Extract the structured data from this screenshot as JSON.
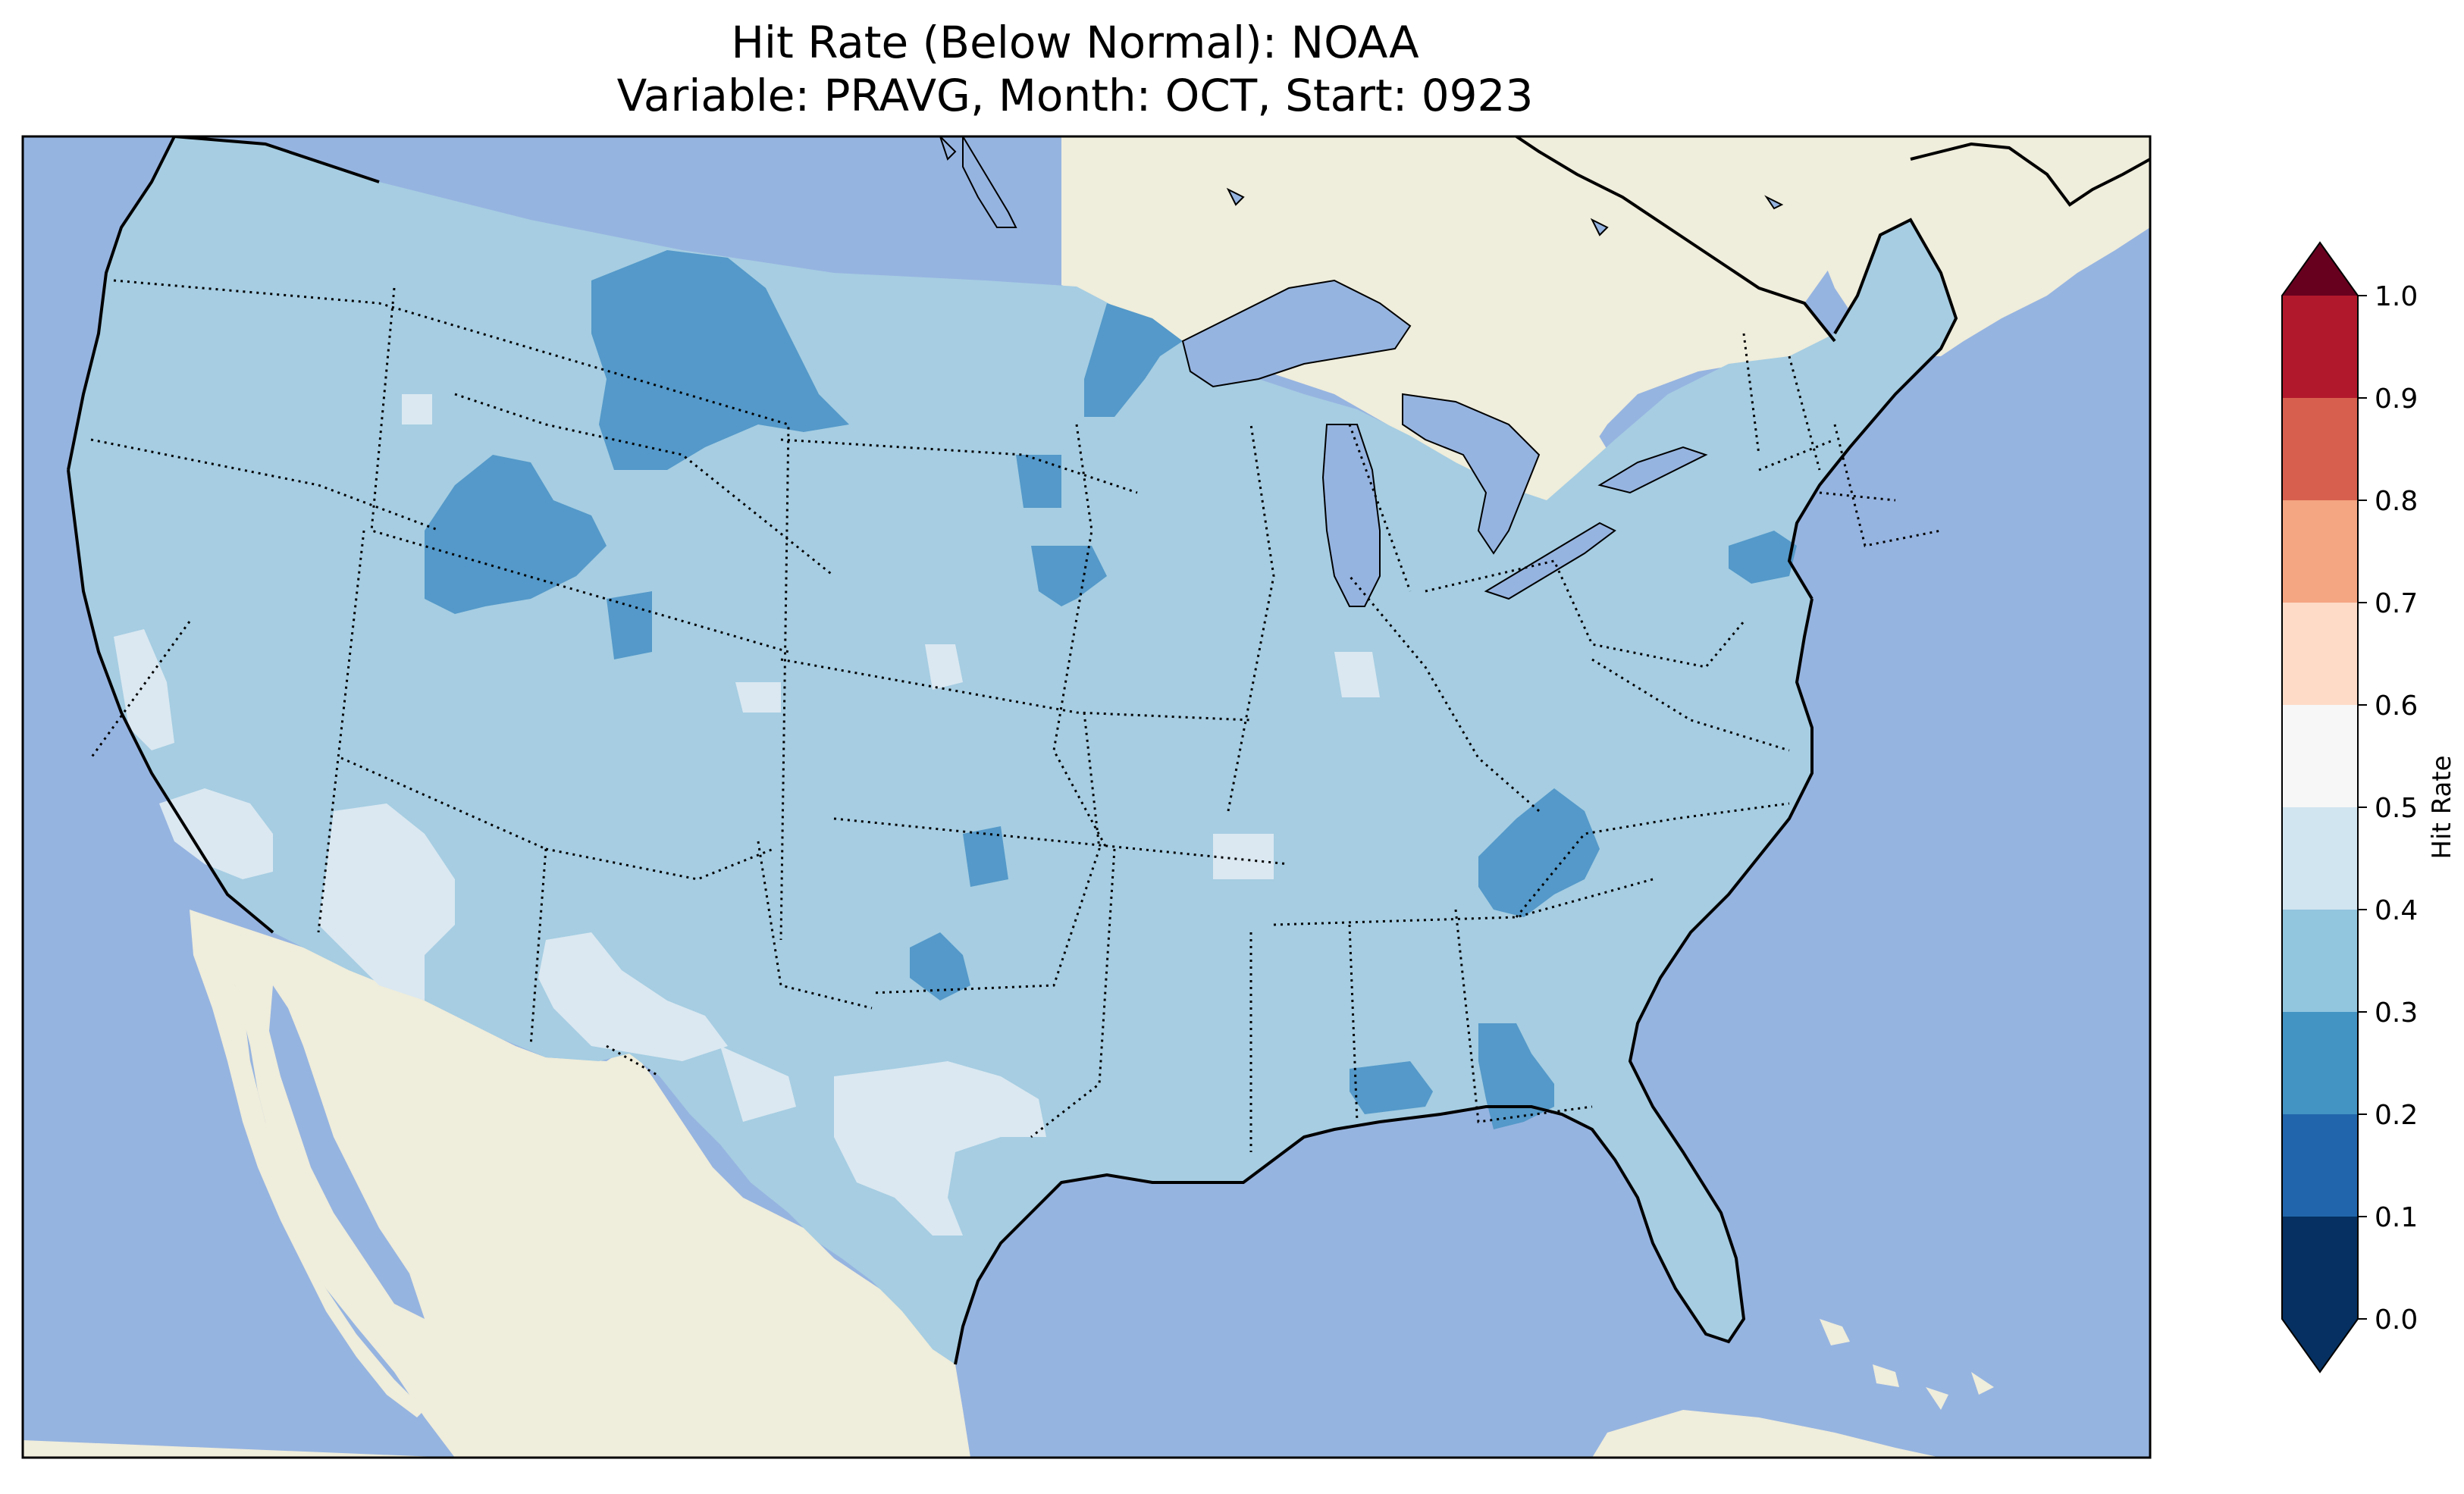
{
  "title": {
    "line1": "Hit Rate (Below Normal): NOAA",
    "line2": "Variable: PRAVG, Month: OCT, Start: 0923"
  },
  "colors": {
    "ocean": "#96b4e0",
    "land": "#efeddb",
    "lake": "#96b4e0",
    "border": "#000000"
  },
  "colorbar": {
    "label": "Hit Rate",
    "ticks": [
      "0.0",
      "0.1",
      "0.2",
      "0.3",
      "0.4",
      "0.5",
      "0.6",
      "0.7",
      "0.8",
      "0.9",
      "1.0"
    ],
    "bins": [
      {
        "from": 0.0,
        "to": 0.1,
        "color": "#053061"
      },
      {
        "from": 0.1,
        "to": 0.2,
        "color": "#2166ac"
      },
      {
        "from": 0.2,
        "to": 0.3,
        "color": "#4393c3"
      },
      {
        "from": 0.3,
        "to": 0.4,
        "color": "#92c5de"
      },
      {
        "from": 0.4,
        "to": 0.5,
        "color": "#d1e5f0"
      },
      {
        "from": 0.5,
        "to": 0.6,
        "color": "#f7f7f7"
      },
      {
        "from": 0.6,
        "to": 0.7,
        "color": "#fddbc7"
      },
      {
        "from": 0.7,
        "to": 0.8,
        "color": "#f4a582"
      },
      {
        "from": 0.8,
        "to": 0.9,
        "color": "#d6604d"
      },
      {
        "from": 0.9,
        "to": 1.0,
        "color": "#b2182b"
      }
    ],
    "extend_low_color": "#053061",
    "extend_high_color": "#67001f"
  },
  "map_field": {
    "base_class": "0.3-0.4",
    "base_color": "#a6cde2",
    "regions": [
      {
        "name": "montana-low",
        "class": "0.2-0.3",
        "color": "#5499c9"
      },
      {
        "name": "idaho-low",
        "class": "0.2-0.3",
        "color": "#5499c9"
      },
      {
        "name": "minnesota-low",
        "class": "0.2-0.3",
        "color": "#5499c9"
      },
      {
        "name": "iowa-low",
        "class": "0.2-0.3",
        "color": "#5499c9"
      },
      {
        "name": "tennessee-low",
        "class": "0.2-0.3",
        "color": "#5499c9"
      },
      {
        "name": "alabama-georgia-low",
        "class": "0.2-0.3",
        "color": "#5499c9"
      },
      {
        "name": "mississippi-low",
        "class": "0.2-0.3",
        "color": "#5499c9"
      },
      {
        "name": "oklahoma-texas-low",
        "class": "0.2-0.3",
        "color": "#5499c9"
      },
      {
        "name": "pennsylvania-low",
        "class": "0.2-0.3",
        "color": "#5499c9"
      },
      {
        "name": "california-high",
        "class": "0.4-0.5",
        "color": "#dbe8f1"
      },
      {
        "name": "nevada-arizona-high",
        "class": "0.4-0.5",
        "color": "#dbe8f1"
      },
      {
        "name": "new-mexico-high",
        "class": "0.4-0.5",
        "color": "#dbe8f1"
      },
      {
        "name": "texas-high",
        "class": "0.4-0.5",
        "color": "#dbe8f1"
      }
    ]
  }
}
